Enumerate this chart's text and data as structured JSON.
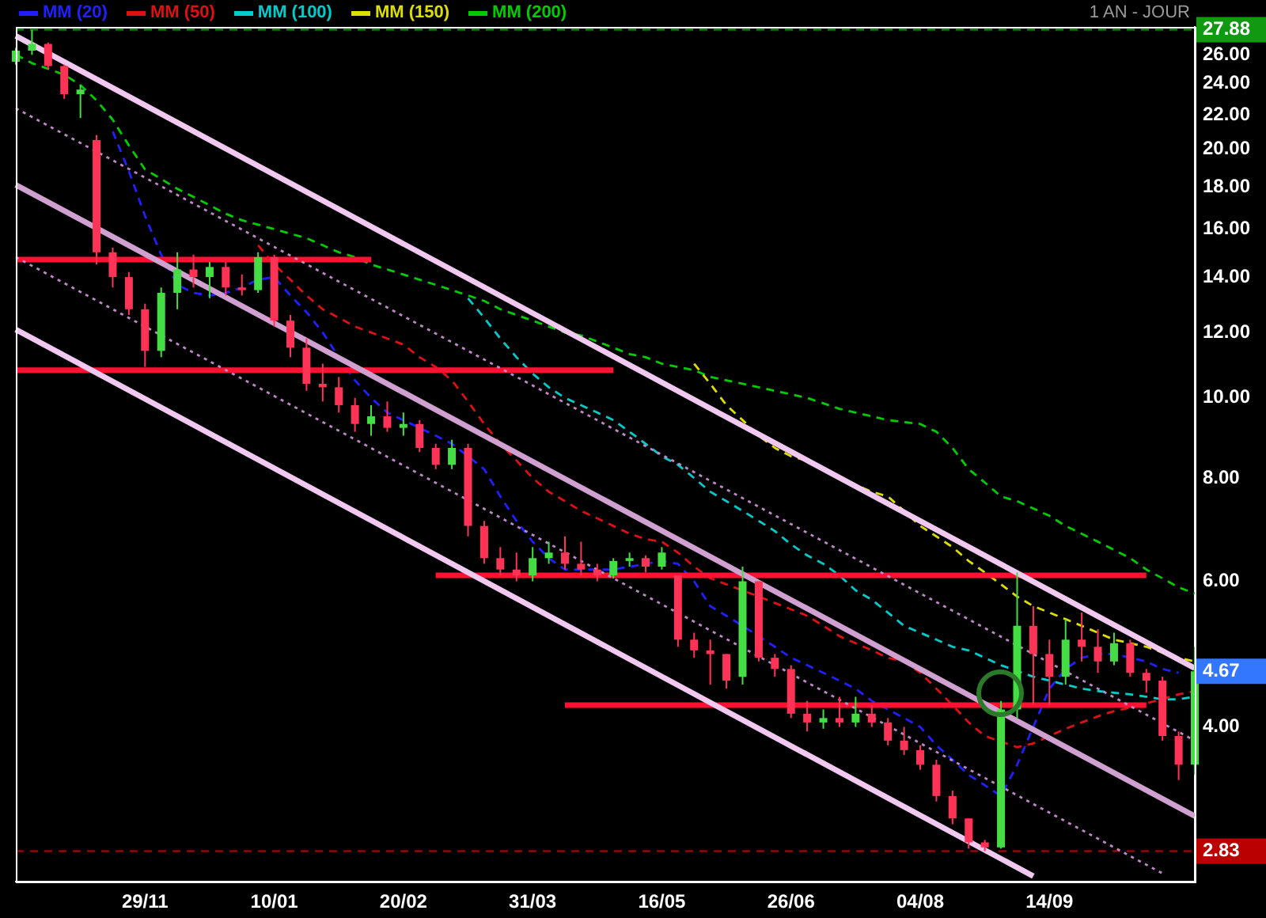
{
  "chart_data": {
    "type": "candlestick",
    "subtitle": "1 AN - JOUR",
    "categories": [
      null,
      null,
      null,
      null,
      null,
      null,
      null,
      null,
      "29/11",
      null,
      null,
      null,
      null,
      null,
      null,
      null,
      "10/01",
      null,
      null,
      null,
      null,
      null,
      null,
      null,
      "20/02",
      null,
      null,
      null,
      null,
      null,
      null,
      null,
      "31/03",
      null,
      null,
      null,
      null,
      null,
      null,
      null,
      "16/05",
      null,
      null,
      null,
      null,
      null,
      null,
      null,
      "26/06",
      null,
      null,
      null,
      null,
      null,
      null,
      null,
      "04/08",
      null,
      null,
      null,
      null,
      null,
      null,
      null,
      "14/09",
      null,
      null,
      null,
      null,
      null,
      null,
      null,
      null,
      null
    ],
    "ohlc": [
      [
        25.5,
        26.5,
        25.3,
        26.3
      ],
      [
        26.3,
        27.88,
        26.0,
        26.8
      ],
      [
        26.8,
        26.9,
        25.0,
        25.2
      ],
      [
        25.2,
        25.3,
        23.0,
        23.3
      ],
      [
        23.3,
        23.9,
        21.8,
        23.6
      ],
      [
        20.5,
        20.8,
        14.5,
        15.0
      ],
      [
        15.0,
        15.2,
        13.6,
        14.0
      ],
      [
        14.0,
        14.2,
        12.6,
        12.8
      ],
      [
        12.8,
        13.0,
        10.9,
        11.4
      ],
      [
        11.4,
        13.6,
        11.2,
        13.4
      ],
      [
        13.4,
        15.0,
        12.8,
        14.3
      ],
      [
        14.3,
        14.9,
        13.6,
        14.0
      ],
      [
        14.0,
        14.6,
        13.2,
        14.4
      ],
      [
        14.4,
        14.6,
        13.3,
        13.6
      ],
      [
        13.6,
        14.1,
        13.3,
        13.5
      ],
      [
        13.5,
        15.0,
        13.4,
        14.8
      ],
      [
        14.8,
        14.9,
        12.2,
        12.4
      ],
      [
        12.4,
        12.6,
        11.2,
        11.5
      ],
      [
        11.5,
        11.8,
        10.2,
        10.4
      ],
      [
        10.4,
        11.0,
        9.9,
        10.3
      ],
      [
        10.3,
        10.6,
        9.6,
        9.8
      ],
      [
        9.8,
        10.0,
        9.1,
        9.3
      ],
      [
        9.3,
        9.8,
        9.0,
        9.5
      ],
      [
        9.5,
        9.9,
        9.1,
        9.2
      ],
      [
        9.2,
        9.6,
        9.0,
        9.3
      ],
      [
        9.3,
        9.4,
        8.6,
        8.7
      ],
      [
        8.7,
        8.8,
        8.2,
        8.3
      ],
      [
        8.3,
        8.9,
        8.2,
        8.7
      ],
      [
        8.7,
        8.8,
        6.8,
        7.0
      ],
      [
        7.0,
        7.1,
        6.3,
        6.4
      ],
      [
        6.4,
        6.6,
        6.1,
        6.2
      ],
      [
        6.2,
        6.5,
        6.0,
        6.1
      ],
      [
        6.1,
        6.6,
        6.0,
        6.4
      ],
      [
        6.4,
        6.7,
        6.3,
        6.5
      ],
      [
        6.5,
        6.8,
        6.2,
        6.3
      ],
      [
        6.3,
        6.7,
        6.1,
        6.2
      ],
      [
        6.2,
        6.3,
        6.0,
        6.1
      ],
      [
        6.1,
        6.4,
        6.05,
        6.35
      ],
      [
        6.35,
        6.5,
        6.25,
        6.4
      ],
      [
        6.4,
        6.45,
        6.15,
        6.25
      ],
      [
        6.25,
        6.6,
        6.2,
        6.5
      ],
      [
        6.1,
        6.1,
        5.0,
        5.1
      ],
      [
        5.1,
        5.2,
        4.85,
        4.95
      ],
      [
        4.95,
        5.1,
        4.5,
        4.9
      ],
      [
        4.9,
        4.9,
        4.45,
        4.55
      ],
      [
        4.6,
        6.25,
        4.5,
        6.0
      ],
      [
        6.0,
        6.0,
        4.8,
        4.85
      ],
      [
        4.85,
        4.9,
        4.6,
        4.7
      ],
      [
        4.7,
        4.75,
        4.1,
        4.15
      ],
      [
        4.15,
        4.3,
        3.95,
        4.05
      ],
      [
        4.05,
        4.2,
        3.98,
        4.1
      ],
      [
        4.1,
        4.35,
        4.0,
        4.05
      ],
      [
        4.05,
        4.35,
        4.0,
        4.15
      ],
      [
        4.15,
        4.25,
        4.0,
        4.05
      ],
      [
        4.05,
        4.1,
        3.8,
        3.85
      ],
      [
        3.85,
        4.0,
        3.7,
        3.75
      ],
      [
        3.75,
        3.8,
        3.55,
        3.6
      ],
      [
        3.6,
        3.65,
        3.25,
        3.3
      ],
      [
        3.3,
        3.35,
        3.05,
        3.1
      ],
      [
        3.1,
        3.1,
        2.85,
        2.9
      ],
      [
        2.9,
        2.92,
        2.83,
        2.86
      ],
      [
        2.86,
        4.3,
        2.85,
        4.2
      ],
      [
        4.2,
        6.15,
        4.1,
        5.3
      ],
      [
        5.3,
        5.6,
        4.25,
        4.9
      ],
      [
        4.9,
        5.1,
        4.25,
        4.6
      ],
      [
        4.6,
        5.4,
        4.5,
        5.1
      ],
      [
        5.1,
        5.5,
        4.8,
        5.0
      ],
      [
        5.0,
        5.25,
        4.65,
        4.8
      ],
      [
        4.8,
        5.2,
        4.75,
        5.05
      ],
      [
        5.05,
        5.1,
        4.6,
        4.65
      ],
      [
        4.65,
        4.7,
        4.4,
        4.55
      ],
      [
        4.55,
        4.6,
        3.85,
        3.9
      ],
      [
        3.9,
        3.95,
        3.45,
        3.6
      ],
      [
        3.6,
        5.0,
        3.5,
        4.67
      ]
    ],
    "series": [
      {
        "type": "line",
        "color": "#f0c8f0",
        "line_style": "solid",
        "values": [
          27.4,
          null,
          null,
          null,
          null,
          null,
          null,
          null,
          null,
          null,
          null,
          null,
          null,
          null,
          null,
          null,
          null,
          null,
          null,
          null,
          null,
          null,
          null,
          null,
          null,
          null,
          null,
          null,
          null,
          null,
          null,
          null,
          null,
          null,
          null,
          null,
          null,
          null,
          null,
          null,
          null,
          null,
          null,
          null,
          null,
          null,
          null,
          null,
          null,
          null,
          null,
          null,
          null,
          null,
          null,
          null,
          null,
          null,
          null,
          null,
          null,
          null,
          null,
          null,
          null,
          null,
          null,
          null,
          null,
          null,
          null,
          null,
          null,
          4.71
        ]
      },
      {
        "type": "line",
        "color": "#c088c8",
        "line_style": "dotted",
        "values": [
          22.4,
          null,
          null,
          null,
          null,
          null,
          null,
          null,
          null,
          null,
          null,
          null,
          null,
          null,
          null,
          null,
          null,
          null,
          null,
          null,
          null,
          null,
          null,
          null,
          null,
          null,
          null,
          null,
          null,
          null,
          null,
          null,
          null,
          null,
          null,
          null,
          null,
          null,
          null,
          null,
          null,
          null,
          null,
          null,
          null,
          null,
          null,
          null,
          null,
          null,
          null,
          null,
          null,
          null,
          null,
          null,
          null,
          null,
          null,
          null,
          null,
          null,
          null,
          null,
          null,
          null,
          null,
          null,
          null,
          null,
          null,
          null,
          null,
          3.85
        ]
      },
      {
        "type": "line",
        "color": "#d0a0d0",
        "line_style": "solid",
        "values": [
          18.1,
          null,
          null,
          null,
          null,
          null,
          null,
          null,
          null,
          null,
          null,
          null,
          null,
          null,
          null,
          null,
          null,
          null,
          null,
          null,
          null,
          null,
          null,
          null,
          null,
          null,
          null,
          null,
          null,
          null,
          null,
          null,
          null,
          null,
          null,
          null,
          null,
          null,
          null,
          null,
          null,
          null,
          null,
          null,
          null,
          null,
          null,
          null,
          null,
          null,
          null,
          null,
          null,
          null,
          null,
          null,
          null,
          null,
          null,
          null,
          null,
          null,
          null,
          null,
          null,
          null,
          null,
          null,
          null,
          null,
          null,
          null,
          null,
          3.12
        ]
      },
      {
        "type": "line",
        "color": "#c088c8",
        "line_style": "dotted",
        "values": [
          14.8,
          null,
          null,
          null,
          null,
          null,
          null,
          null,
          null,
          null,
          null,
          null,
          null,
          null,
          null,
          null,
          null,
          null,
          null,
          null,
          null,
          null,
          null,
          null,
          null,
          null,
          null,
          null,
          null,
          null,
          null,
          null,
          null,
          null,
          null,
          null,
          null,
          null,
          null,
          null,
          null,
          null,
          null,
          null,
          null,
          null,
          null,
          null,
          null,
          null,
          null,
          null,
          null,
          null,
          null,
          null,
          null,
          null,
          null,
          null,
          null,
          null,
          null,
          null,
          null,
          null,
          null,
          null,
          null,
          null,
          null,
          2.66,
          null,
          null
        ]
      },
      {
        "type": "line",
        "color": "#f0c8f0",
        "line_style": "solid",
        "values": [
          12.1,
          null,
          null,
          null,
          null,
          null,
          null,
          null,
          null,
          null,
          null,
          null,
          null,
          null,
          null,
          null,
          null,
          null,
          null,
          null,
          null,
          null,
          null,
          null,
          null,
          null,
          null,
          null,
          null,
          null,
          null,
          null,
          null,
          null,
          null,
          null,
          null,
          null,
          null,
          null,
          null,
          null,
          null,
          null,
          null,
          null,
          null,
          null,
          null,
          null,
          null,
          null,
          null,
          null,
          null,
          null,
          null,
          null,
          null,
          null,
          null,
          null,
          null,
          2.64,
          null,
          null,
          null,
          null,
          null,
          null,
          null,
          null,
          null,
          null
        ]
      },
      {
        "type": "line",
        "color": "#ff1133",
        "line_style": "solid",
        "values": [
          14.7,
          null,
          null,
          null,
          null,
          null,
          null,
          null,
          null,
          null,
          null,
          null,
          null,
          null,
          null,
          null,
          null,
          null,
          null,
          null,
          null,
          null,
          14.7,
          null,
          null,
          null,
          null,
          null,
          null,
          null,
          null,
          null,
          null,
          null,
          null,
          null,
          null,
          null,
          null,
          null,
          null,
          null,
          null,
          null,
          null,
          null,
          null,
          null,
          null,
          null,
          null,
          null,
          null,
          null,
          null,
          null,
          null,
          null,
          null,
          null,
          null,
          null,
          null,
          null,
          null,
          null,
          null,
          null,
          null,
          null,
          null,
          null,
          null,
          null
        ]
      },
      {
        "type": "line",
        "color": "#ff1133",
        "line_style": "solid",
        "values": [
          10.8,
          null,
          null,
          null,
          null,
          null,
          null,
          null,
          null,
          null,
          null,
          null,
          null,
          null,
          null,
          null,
          null,
          null,
          null,
          null,
          null,
          null,
          null,
          null,
          null,
          null,
          null,
          null,
          null,
          null,
          null,
          null,
          null,
          null,
          null,
          null,
          null,
          10.8,
          null,
          null,
          null,
          null,
          null,
          null,
          null,
          null,
          null,
          null,
          null,
          null,
          null,
          null,
          null,
          null,
          null,
          null,
          null,
          null,
          null,
          null,
          null,
          null,
          null,
          null,
          null,
          null,
          null,
          null,
          null,
          null,
          null,
          null,
          null,
          null
        ]
      },
      {
        "type": "line",
        "color": "#ff1133",
        "line_style": "solid",
        "values": [
          null,
          null,
          null,
          null,
          null,
          null,
          null,
          null,
          null,
          null,
          null,
          null,
          null,
          null,
          null,
          null,
          null,
          null,
          null,
          null,
          null,
          null,
          null,
          null,
          null,
          null,
          6.1,
          null,
          null,
          null,
          null,
          null,
          null,
          null,
          null,
          null,
          null,
          null,
          null,
          null,
          null,
          null,
          null,
          null,
          null,
          null,
          null,
          null,
          null,
          null,
          null,
          null,
          null,
          null,
          null,
          null,
          null,
          null,
          null,
          null,
          null,
          null,
          null,
          null,
          null,
          null,
          null,
          null,
          null,
          null,
          6.1,
          null,
          null,
          null
        ]
      },
      {
        "type": "line",
        "color": "#ff1133",
        "line_style": "solid",
        "values": [
          null,
          null,
          null,
          null,
          null,
          null,
          null,
          null,
          null,
          null,
          null,
          null,
          null,
          null,
          null,
          null,
          null,
          null,
          null,
          null,
          null,
          null,
          null,
          null,
          null,
          null,
          null,
          null,
          null,
          null,
          null,
          null,
          null,
          null,
          4.25,
          null,
          null,
          null,
          null,
          null,
          null,
          null,
          null,
          null,
          null,
          null,
          null,
          null,
          null,
          null,
          null,
          null,
          null,
          null,
          null,
          null,
          null,
          null,
          null,
          null,
          null,
          null,
          null,
          null,
          null,
          null,
          null,
          null,
          null,
          null,
          4.25,
          null,
          null,
          null
        ]
      },
      {
        "name": "MM (20)",
        "type": "line",
        "color": "#2020ff",
        "line_style": "dashed",
        "values": [
          null,
          null,
          null,
          null,
          null,
          null,
          21.0,
          18.8,
          16.6,
          14.9,
          13.7,
          13.4,
          13.3,
          13.4,
          13.6,
          13.9,
          14.0,
          13.3,
          12.7,
          12.0,
          11.2,
          10.5,
          10.0,
          9.6,
          9.4,
          9.2,
          9.0,
          8.8,
          8.5,
          8.2,
          7.6,
          7.1,
          6.7,
          6.4,
          6.2,
          6.2,
          6.2,
          6.2,
          6.25,
          6.3,
          6.35,
          6.3,
          6.0,
          5.6,
          5.45,
          5.3,
          5.15,
          5.0,
          4.85,
          4.75,
          4.65,
          4.55,
          4.45,
          4.3,
          4.2,
          4.1,
          4.0,
          3.8,
          3.65,
          3.5,
          3.4,
          3.3,
          3.6,
          4.0,
          4.45,
          4.7,
          4.85,
          4.9,
          4.9,
          4.85,
          4.8,
          4.7,
          4.65,
          null
        ]
      },
      {
        "name": "MM (50)",
        "type": "line",
        "color": "#dd1111",
        "line_style": "dashed",
        "values": [
          null,
          null,
          null,
          null,
          null,
          null,
          null,
          null,
          null,
          null,
          null,
          null,
          null,
          null,
          null,
          15.3,
          14.5,
          13.9,
          13.3,
          12.8,
          12.5,
          12.2,
          12.0,
          11.8,
          11.6,
          11.2,
          10.9,
          10.5,
          9.9,
          9.3,
          8.8,
          8.4,
          8.0,
          7.7,
          7.5,
          7.3,
          7.15,
          7.0,
          6.85,
          6.75,
          6.7,
          6.5,
          6.25,
          6.05,
          5.95,
          5.85,
          5.75,
          5.65,
          5.55,
          5.45,
          5.3,
          5.15,
          5.05,
          4.95,
          4.85,
          4.8,
          4.65,
          4.45,
          4.25,
          4.05,
          3.9,
          null,
          3.78,
          3.82,
          3.9,
          3.98,
          4.05,
          4.12,
          4.18,
          4.22,
          4.27,
          null,
          4.38,
          4.42
        ]
      },
      {
        "name": "MM (100)",
        "type": "line",
        "color": "#00cccc",
        "line_style": "dashed",
        "values": [
          null,
          null,
          null,
          null,
          null,
          null,
          null,
          null,
          null,
          null,
          null,
          null,
          null,
          null,
          null,
          null,
          null,
          null,
          null,
          null,
          null,
          null,
          null,
          null,
          null,
          null,
          null,
          null,
          13.2,
          12.5,
          11.8,
          11.2,
          10.7,
          10.3,
          10.0,
          9.8,
          9.6,
          9.4,
          9.1,
          8.8,
          8.5,
          8.3,
          8.0,
          7.7,
          7.5,
          7.3,
          7.1,
          6.9,
          6.65,
          6.45,
          6.3,
          6.1,
          5.85,
          5.7,
          5.5,
          5.3,
          5.2,
          5.1,
          5.0,
          4.95,
          4.85,
          4.75,
          null,
          4.6,
          4.55,
          4.5,
          4.45,
          4.42,
          4.4,
          4.38,
          4.35,
          4.32,
          4.32,
          4.35
        ]
      },
      {
        "name": "MM (150)",
        "type": "line",
        "color": "#dddd00",
        "line_style": "dashed",
        "values": [
          null,
          null,
          null,
          null,
          null,
          null,
          null,
          null,
          null,
          null,
          null,
          null,
          null,
          null,
          null,
          null,
          null,
          null,
          null,
          null,
          null,
          null,
          null,
          null,
          null,
          null,
          null,
          null,
          null,
          null,
          null,
          null,
          null,
          null,
          null,
          null,
          null,
          null,
          null,
          null,
          null,
          null,
          11.0,
          10.4,
          9.8,
          9.4,
          9.0,
          8.7,
          8.5,
          8.4,
          null,
          null,
          7.85,
          7.7,
          7.6,
          7.3,
          7.0,
          6.8,
          6.6,
          6.35,
          6.15,
          5.95,
          5.75,
          5.6,
          5.5,
          5.4,
          5.3,
          5.2,
          5.1,
          5.05,
          5.0,
          4.92,
          4.85,
          4.8
        ]
      },
      {
        "name": "MM (200)",
        "type": "line",
        "color": "#00cc00",
        "line_style": "dashed",
        "values": [
          26.0,
          25.4,
          25.0,
          24.6,
          23.9,
          22.9,
          21.7,
          20.2,
          18.9,
          18.4,
          17.9,
          17.5,
          17.1,
          16.7,
          16.4,
          16.2,
          16.0,
          15.8,
          15.6,
          15.3,
          15.0,
          14.8,
          14.5,
          14.3,
          14.1,
          13.9,
          13.7,
          13.5,
          13.3,
          13.1,
          12.8,
          12.6,
          12.4,
          12.2,
          12.0,
          11.9,
          11.7,
          11.5,
          11.3,
          11.2,
          11.0,
          10.9,
          10.8,
          10.6,
          10.5,
          10.4,
          10.3,
          10.2,
          10.1,
          10.0,
          9.85,
          9.7,
          9.6,
          9.5,
          9.4,
          9.35,
          9.3,
          9.1,
          8.7,
          8.2,
          7.9,
          7.6,
          7.5,
          7.35,
          7.2,
          7.0,
          6.85,
          6.7,
          6.55,
          6.4,
          6.2,
          6.05,
          5.9,
          5.8
        ]
      }
    ],
    "ylim": [
      2.6,
      28.1
    ],
    "yticks": [
      {
        "value": 4,
        "label": "4.00"
      },
      {
        "value": 6,
        "label": "6.00"
      },
      {
        "value": 8,
        "label": "8.00"
      },
      {
        "value": 10,
        "label": "10.00"
      },
      {
        "value": 12,
        "label": "12.00"
      },
      {
        "value": 14,
        "label": "14.00"
      },
      {
        "value": 16,
        "label": "16.00"
      },
      {
        "value": 18,
        "label": "18.00"
      },
      {
        "value": 20,
        "label": "20.00"
      },
      {
        "value": 22,
        "label": "22.00"
      },
      {
        "value": 24,
        "label": "24.00"
      },
      {
        "value": 26,
        "label": "26.00"
      }
    ],
    "log": true,
    "legend": "top left",
    "ref_lines": [
      {
        "axis": "y",
        "value": 27.88,
        "label": "27.88",
        "color": "#119911",
        "line_style": "dashed"
      },
      {
        "axis": "y",
        "value": 2.83,
        "label": "2.83",
        "color": "#bb0000",
        "line_style": "dashed"
      }
    ],
    "annotations": [
      "4.67"
    ]
  }
}
